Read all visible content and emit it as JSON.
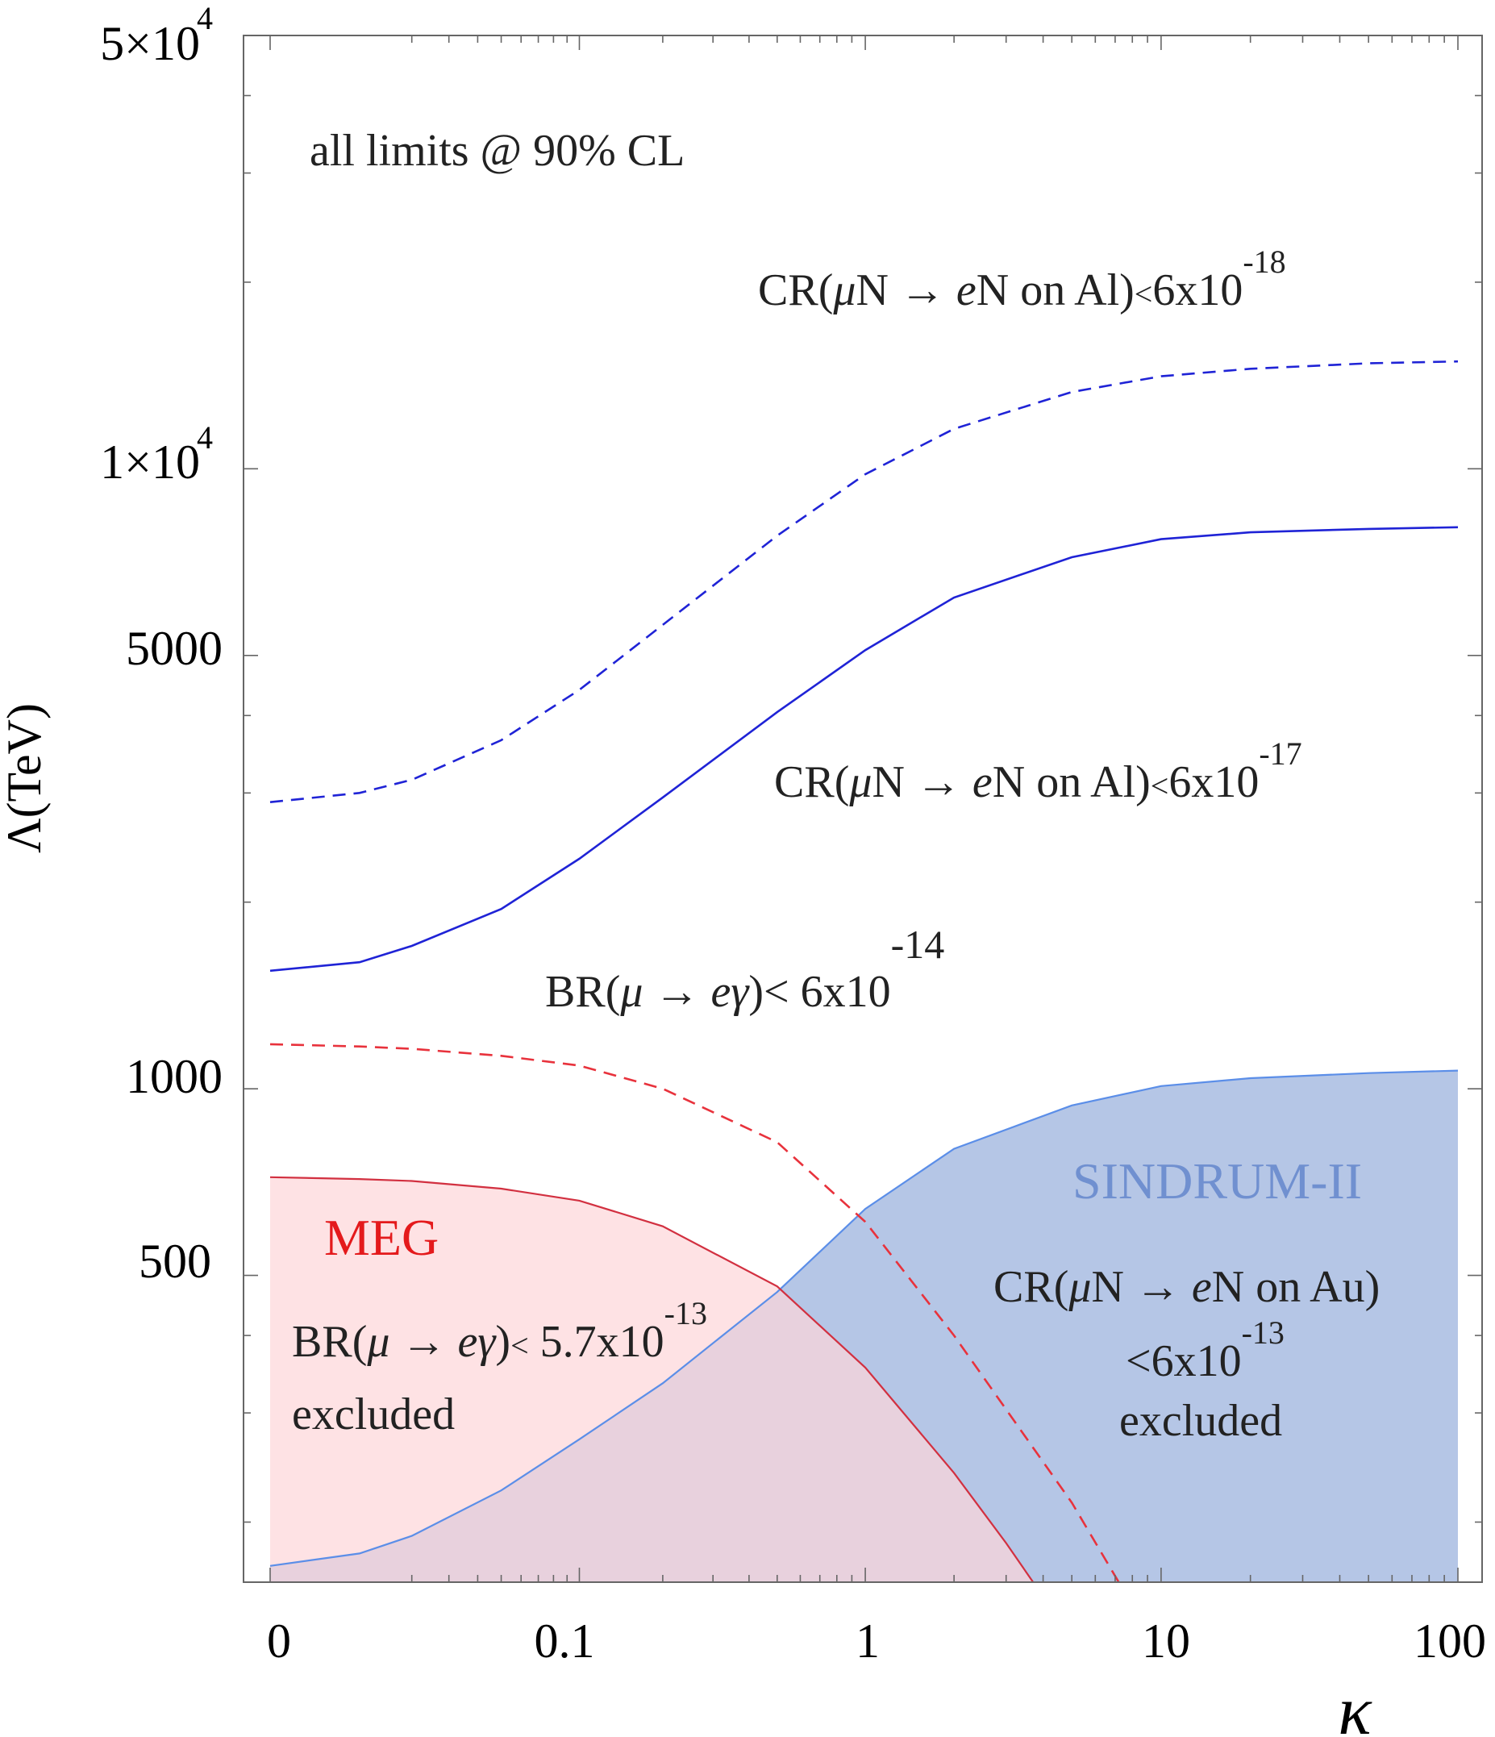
{
  "chart_data": {
    "type": "line",
    "xscale": "log(kappa+0.01)",
    "yscale": "log",
    "xlabel": "κ",
    "ylabel": "Λ(TeV)",
    "xlim": [
      0,
      100
    ],
    "ylim": [
      160,
      50000
    ],
    "xticks": [
      {
        "value": 0,
        "label": "0"
      },
      {
        "value": 0.1,
        "label": "0.1"
      },
      {
        "value": 1,
        "label": "1"
      },
      {
        "value": 10,
        "label": "10"
      },
      {
        "value": 100,
        "label": "100"
      }
    ],
    "yticks": [
      {
        "value": 500,
        "label": "500"
      },
      {
        "value": 1000,
        "label": "1000"
      },
      {
        "value": 5000,
        "label": "5000"
      },
      {
        "value": 10000,
        "label": "1×10",
        "exp": "4"
      },
      {
        "value": 50000,
        "label": "5×10",
        "exp": "4"
      }
    ],
    "series": [
      {
        "name": "CR(μN→eN on Au)<6x10^-13 (SINDRUM-II)",
        "style": "filled",
        "color": "#5b8ee8",
        "fill": "#b5c6e6",
        "x": [
          0,
          0.01,
          0.02,
          0.05,
          0.1,
          0.2,
          0.5,
          1,
          2,
          5,
          10,
          20,
          50,
          100
        ],
        "y": [
          170,
          178,
          190,
          225,
          272,
          335,
          470,
          640,
          800,
          940,
          1010,
          1040,
          1060,
          1070
        ]
      },
      {
        "name": "BR(μ→eγ)< 5.7x10^-13 (MEG)",
        "style": "filled",
        "color": "#d23040",
        "fill": "#fdd5d9",
        "x": [
          0,
          0.01,
          0.02,
          0.05,
          0.1,
          0.2,
          0.5,
          1,
          2,
          3,
          3.7
        ],
        "y": [
          720,
          715,
          710,
          690,
          660,
          600,
          480,
          355,
          240,
          185,
          160
        ]
      },
      {
        "name": "BR(μ→eγ)< 6x10^-14",
        "style": "dashed",
        "color": "#e8323c",
        "x": [
          0,
          0.01,
          0.02,
          0.05,
          0.1,
          0.2,
          0.5,
          1,
          2,
          5,
          7.2
        ],
        "y": [
          1180,
          1170,
          1160,
          1130,
          1090,
          1000,
          820,
          610,
          400,
          215,
          160
        ]
      },
      {
        "name": "CR(μN→eN on Al)<6x10^-17",
        "style": "solid",
        "color": "#1f23d6",
        "x": [
          0,
          0.01,
          0.02,
          0.05,
          0.1,
          0.2,
          0.5,
          1,
          2,
          5,
          10,
          20,
          50,
          100
        ],
        "y": [
          1550,
          1600,
          1700,
          1950,
          2350,
          2950,
          4050,
          5100,
          6200,
          7200,
          7700,
          7900,
          8000,
          8050
        ]
      },
      {
        "name": "CR(μN→eN on Al)<6x10^-18",
        "style": "dashed",
        "color": "#1f23d6",
        "x": [
          0,
          0.01,
          0.02,
          0.05,
          0.1,
          0.2,
          0.5,
          1,
          2,
          5,
          10,
          20,
          50,
          100
        ],
        "y": [
          2900,
          3000,
          3150,
          3650,
          4400,
          5600,
          7800,
          9800,
          11600,
          13300,
          14100,
          14500,
          14800,
          14900
        ]
      }
    ],
    "annotations": {
      "all_limits": "all limits @ 90% CL",
      "al18": {
        "prefix": "CR(",
        "mu": "μ",
        "n1": "N → ",
        "e": "e",
        "n2": "N on Al)",
        "lt": "<",
        "coef": "6x10",
        "exp": "-18"
      },
      "al17": {
        "prefix": "CR(",
        "mu": "μ",
        "n1": "N → ",
        "e": "e",
        "n2": "N on Al)",
        "lt": "<",
        "coef": "6x10",
        "exp": "-17"
      },
      "br14": {
        "prefix": "BR(",
        "mu": "μ",
        "arrow": " → ",
        "e": "e",
        "gamma": "γ",
        "tail": ")< 6x10",
        "exp": "-14"
      },
      "meg_name": "MEG",
      "meg_br": {
        "prefix": "BR(",
        "mu": "μ",
        "arrow": " → ",
        "e": "e",
        "gamma": "γ",
        "tail": ")",
        "lt": "<",
        "coef": " 5.7x10",
        "exp": "-13"
      },
      "meg_excluded": "excluded",
      "sindrum_name": "SINDRUM-II",
      "au": {
        "prefix": "CR(",
        "mu": "μ",
        "n1": "N → ",
        "e": "e",
        "n2": "N on Au)"
      },
      "au_limit": {
        "coef": "<6x10",
        "exp": "-13"
      },
      "sindrum_excluded": "excluded"
    }
  }
}
